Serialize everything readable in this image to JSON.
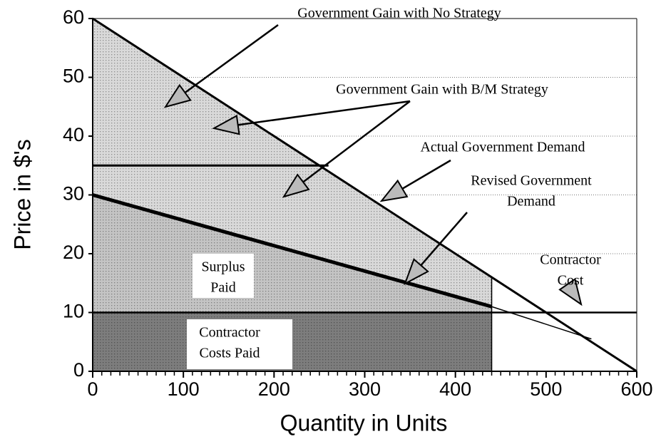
{
  "chart_data": {
    "type": "line",
    "xlabel": "Quantity in Units",
    "ylabel": "Price in $'s",
    "xlim": [
      0,
      600
    ],
    "ylim": [
      0,
      60
    ],
    "xticks": [
      0,
      100,
      200,
      300,
      400,
      500,
      600
    ],
    "yticks": [
      0,
      10,
      20,
      30,
      40,
      50,
      60
    ],
    "grid": true,
    "regions": [
      {
        "color": "#d9d9d9",
        "x": [
          0,
          440,
          440,
          0
        ],
        "y": [
          60,
          16,
          11,
          30
        ]
      },
      {
        "color": "#c4c4c4",
        "x": [
          0,
          440,
          440,
          0
        ],
        "y": [
          30,
          11,
          10,
          10
        ]
      },
      {
        "color": "#7d7d7d",
        "x": [
          0,
          440,
          440,
          0
        ],
        "y": [
          10,
          10,
          0,
          0
        ]
      }
    ],
    "series": [
      {
        "color": "#000000",
        "width": 3,
        "x": [
          0,
          600
        ],
        "y": [
          60,
          0
        ]
      },
      {
        "color": "#000000",
        "width": 5,
        "x": [
          0,
          440
        ],
        "y": [
          30,
          11
        ]
      },
      {
        "color": "#000000",
        "width": 1.5,
        "x": [
          440,
          550
        ],
        "y": [
          11,
          5.5
        ]
      },
      {
        "color": "#000000",
        "width": 2.5,
        "x": [
          0,
          600
        ],
        "y": [
          10,
          10
        ]
      },
      {
        "color": "#000000",
        "width": 3,
        "x": [
          0,
          260
        ],
        "y": [
          35,
          35
        ]
      }
    ],
    "annotations": [
      {
        "lines": [
          "Government Gain with No Strategy"
        ]
      },
      {
        "lines": [
          "Government Gain with B/M Strategy"
        ]
      },
      {
        "lines": [
          "Actual Government Demand"
        ]
      },
      {
        "lines": [
          "Revised Government",
          "Demand"
        ]
      },
      {
        "lines": [
          "Contractor",
          "Cost"
        ]
      },
      {
        "lines": [
          "Surplus",
          "Paid"
        ]
      },
      {
        "lines": [
          "Contractor",
          "Costs Paid"
        ]
      }
    ]
  }
}
